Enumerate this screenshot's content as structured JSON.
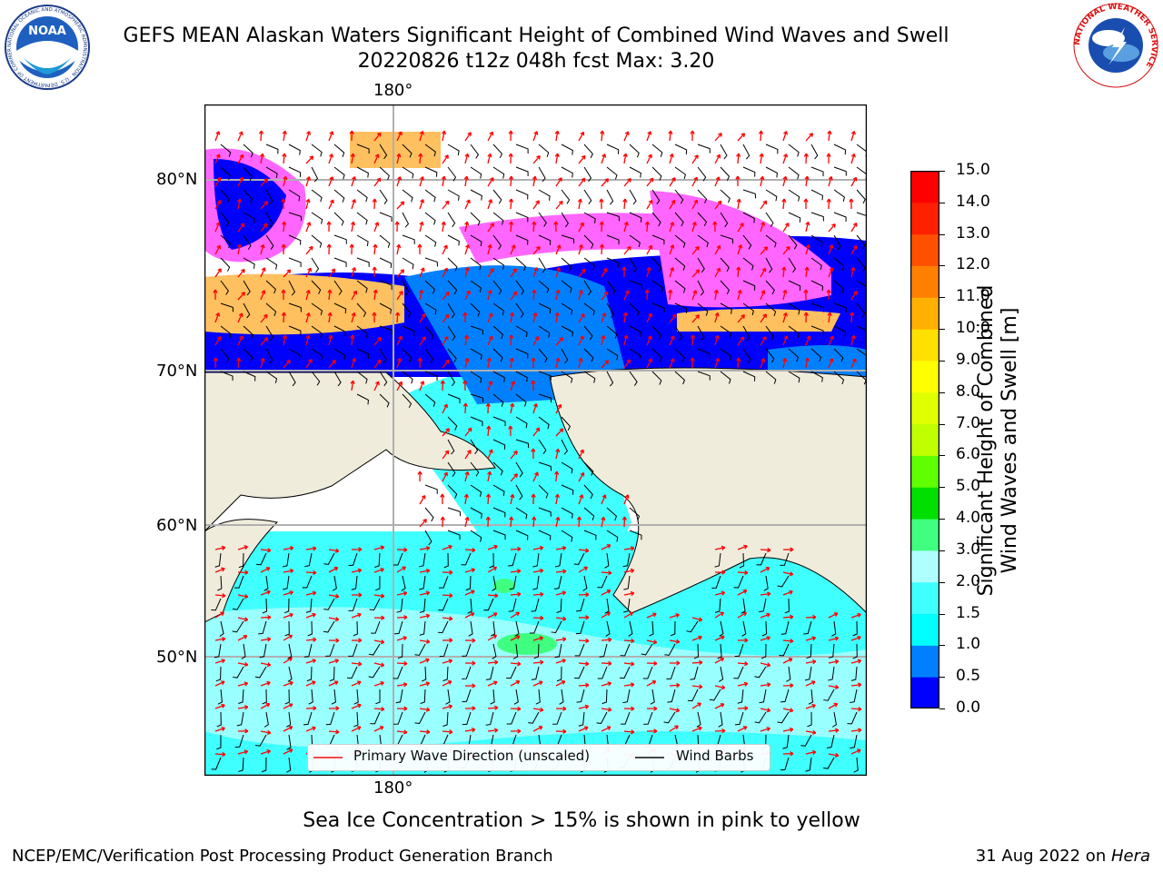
{
  "header": {
    "title": "GEFS MEAN Alaskan Waters Significant Height of Combined Wind Waves and Swell",
    "subtitle": "20220826 t12z 048h fcst   Max: 3.20"
  },
  "logos": {
    "left": {
      "text": "NOAA",
      "ring_text": "NATIONAL OCEANIC AND ATMOSPHERIC ADMINISTRATION · U.S. DEPARTMENT OF COMMERCE",
      "icon": "noaa-logo"
    },
    "right": {
      "ring_text": "NATIONAL WEATHER SERVICE",
      "icon": "nws-logo"
    }
  },
  "map": {
    "top_lon_label": "180°",
    "bottom_lon_label": "180°",
    "lat_labels": [
      "80°N",
      "70°N",
      "60°N",
      "50°N"
    ],
    "legend": {
      "wave": "Primary Wave Direction (unscaled)",
      "barb": "Wind Barbs",
      "wave_color": "#ff0000",
      "barb_color": "#000000"
    },
    "colors": {
      "land": "#efecdc",
      "ocean_fill": "#40ffff",
      "grid": "#b0b0b0"
    }
  },
  "colorbar": {
    "label_line1": "Significant Height of Combined",
    "label_line2": "Wind Waves and Swell [m]",
    "ticks": [
      "0.0",
      "0.5",
      "1.0",
      "1.5",
      "2.0",
      "3.0",
      "4.0",
      "5.0",
      "6.0",
      "7.0",
      "8.0",
      "9.0",
      "10.0",
      "11.0",
      "12.0",
      "13.0",
      "14.0",
      "15.0"
    ],
    "colors": [
      "#0000ff",
      "#0080ff",
      "#00ffff",
      "#40ffff",
      "#b0ffff",
      "#40ff80",
      "#00e000",
      "#60ff00",
      "#c0ff00",
      "#e0ff00",
      "#ffff00",
      "#ffe000",
      "#ffb000",
      "#ff8000",
      "#ff5000",
      "#ff2000",
      "#ff0000"
    ]
  },
  "notes": {
    "sea_ice": "Sea Ice Concentration > 15% is shown in pink to yellow"
  },
  "footer": {
    "left": "NCEP/EMC/Verification Post Processing Product Generation Branch",
    "date": "31 Aug 2022 on ",
    "machine": "Hera"
  }
}
